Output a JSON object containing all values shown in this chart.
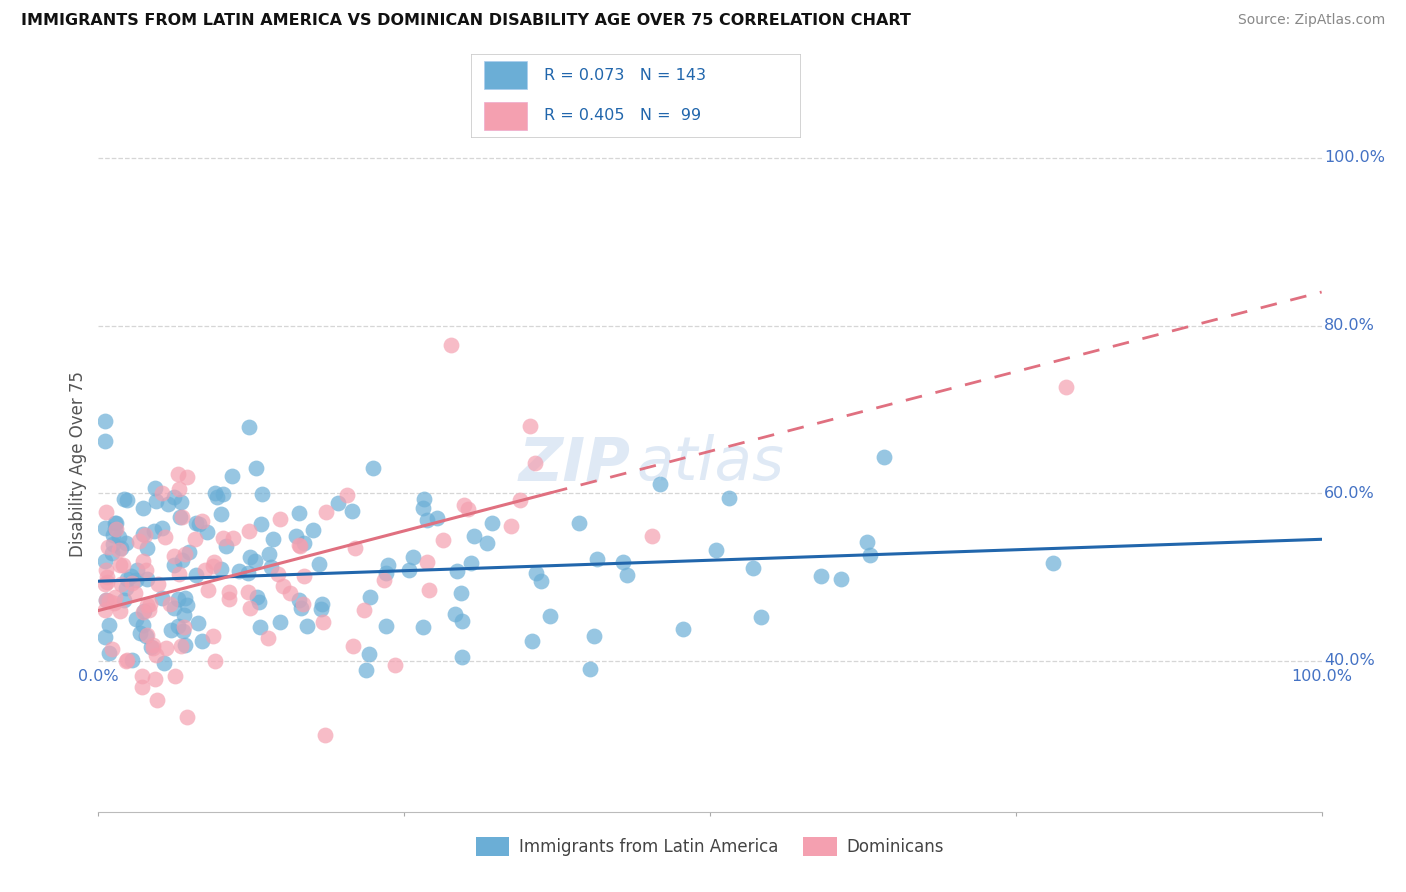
{
  "title": "IMMIGRANTS FROM LATIN AMERICA VS DOMINICAN DISABILITY AGE OVER 75 CORRELATION CHART",
  "source": "Source: ZipAtlas.com",
  "ylabel": "Disability Age Over 75",
  "legend_label1": "Immigrants from Latin America",
  "legend_label2": "Dominicans",
  "r1": 0.073,
  "n1": 143,
  "r2": 0.405,
  "n2": 99,
  "color_blue": "#6baed6",
  "color_pink": "#f4a0b0",
  "color_blue_line": "#2166ac",
  "color_pink_line": "#e07080",
  "xmin": 0.0,
  "xmax": 1.0,
  "ymin": 0.22,
  "ymax": 1.05,
  "yticks": [
    0.4,
    0.6,
    0.8,
    1.0
  ],
  "blue_line_x": [
    0.0,
    1.0
  ],
  "blue_line_y": [
    0.495,
    0.545
  ],
  "pink_line_x": [
    0.0,
    1.0
  ],
  "pink_line_y": [
    0.46,
    0.84
  ]
}
